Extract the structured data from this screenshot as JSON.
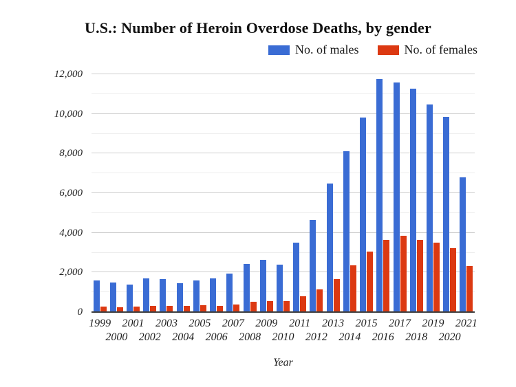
{
  "chart": {
    "title": "U.S.: Number of Heroin Overdose Deaths, by gender",
    "x_axis_title": "Year",
    "legend": [
      {
        "label": "No. of males",
        "color": "#3a6cd4"
      },
      {
        "label": "No. of females",
        "color": "#dc3912"
      }
    ]
  },
  "chart_data": {
    "type": "bar",
    "title": "U.S.: Number of Heroin Overdose Deaths, by gender",
    "xlabel": "Year",
    "ylabel": "",
    "ylim": [
      0,
      12000
    ],
    "ytick_step": 2000,
    "minor_grid_step": 1000,
    "grid": true,
    "legend_position": "top-right",
    "x_tick_style": "staggered-two-rows",
    "categories": [
      1999,
      2000,
      2001,
      2002,
      2003,
      2004,
      2005,
      2006,
      2007,
      2008,
      2009,
      2010,
      2011,
      2012,
      2013,
      2014,
      2015,
      2016,
      2017,
      2018,
      2019,
      2020,
      2021
    ],
    "series": [
      {
        "name": "No. of males",
        "color": "#3a6cd4",
        "values": [
          1600,
          1500,
          1400,
          1690,
          1670,
          1450,
          1590,
          1690,
          1930,
          2430,
          2630,
          2410,
          3490,
          4640,
          6500,
          8130,
          9830,
          11750,
          11570,
          11260,
          10480,
          9840,
          6790
        ]
      },
      {
        "name": "No. of females",
        "color": "#dc3912",
        "values": [
          280,
          240,
          270,
          310,
          300,
          320,
          350,
          330,
          390,
          510,
          570,
          550,
          810,
          1150,
          1680,
          2350,
          3050,
          3640,
          3840,
          3660,
          3490,
          3240,
          2320
        ]
      }
    ]
  }
}
